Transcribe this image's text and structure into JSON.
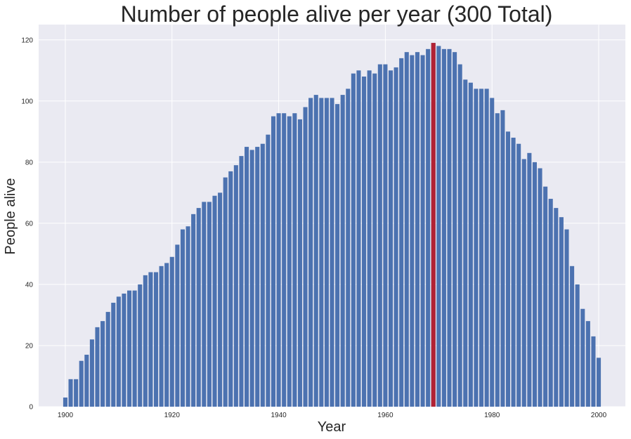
{
  "chart_data": {
    "type": "bar",
    "title": "Number of people alive per year (300 Total)",
    "xlabel": "Year",
    "ylabel": "People alive",
    "xlim": [
      1895,
      2005
    ],
    "ylim": [
      0,
      125
    ],
    "x_ticks": [
      1900,
      1920,
      1940,
      1960,
      1980,
      2000
    ],
    "y_ticks": [
      0,
      20,
      40,
      60,
      80,
      100,
      120
    ],
    "grid": true,
    "x_start": 1900,
    "values": [
      3,
      9,
      9,
      15,
      17,
      22,
      26,
      28,
      31,
      34,
      36,
      37,
      38,
      38,
      40,
      43,
      44,
      44,
      46,
      47,
      49,
      53,
      58,
      59,
      63,
      65,
      67,
      67,
      69,
      70,
      75,
      77,
      79,
      82,
      85,
      84,
      85,
      86,
      89,
      95,
      96,
      96,
      95,
      96,
      94,
      98,
      101,
      102,
      101,
      101,
      101,
      99,
      102,
      104,
      109,
      110,
      108,
      110,
      109,
      112,
      112,
      110,
      111,
      114,
      116,
      115,
      116,
      115,
      117,
      119,
      118,
      117,
      117,
      116,
      112,
      107,
      106,
      104,
      104,
      104,
      101,
      96,
      97,
      90,
      88,
      86,
      81,
      83,
      80,
      78,
      72,
      68,
      65,
      62,
      58,
      46,
      40,
      32,
      28,
      23,
      16
    ],
    "highlight": {
      "year": 1969,
      "value": 119
    },
    "colors": {
      "bar": "#4c72b0",
      "highlight": "#b22234",
      "background": "#eaeaf2",
      "grid": "#ffffff",
      "text": "#262626"
    }
  }
}
